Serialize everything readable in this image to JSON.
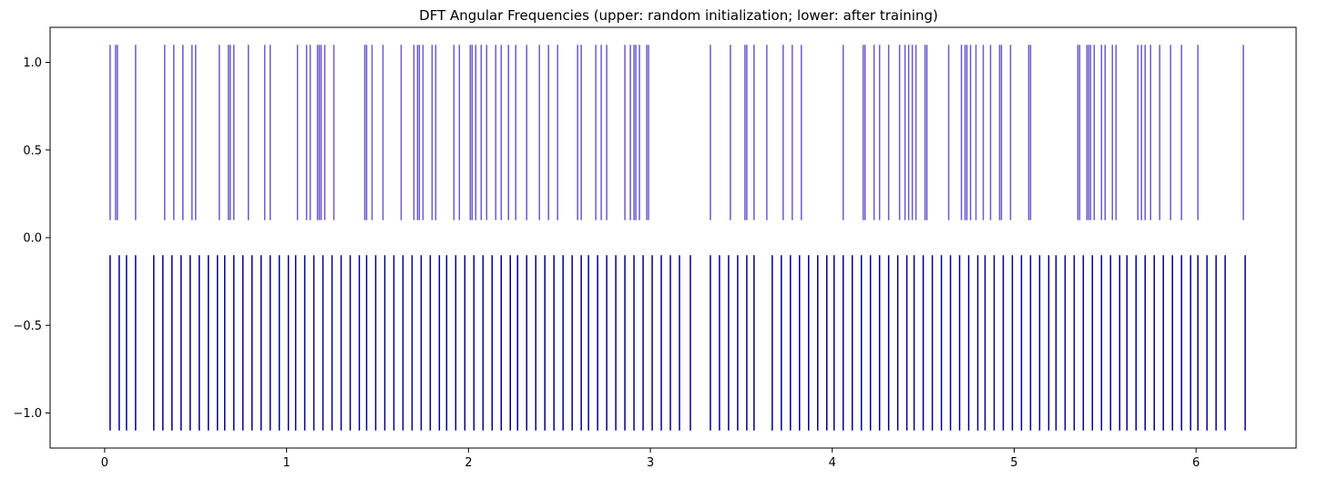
{
  "chart_data": {
    "type": "eventplot",
    "title": "DFT Angular Frequencies (upper: random initialization; lower: after training)",
    "xlabel": "",
    "ylabel": "",
    "xlim": [
      -0.3,
      6.55
    ],
    "ylim": [
      -1.2,
      1.2
    ],
    "grid": false,
    "xticks": [
      0,
      1,
      2,
      3,
      4,
      5,
      6
    ],
    "xtick_labels": [
      "0",
      "1",
      "2",
      "3",
      "4",
      "5",
      "6"
    ],
    "yticks": [
      1.0,
      0.5,
      0.0,
      -0.5,
      -1.0
    ],
    "ytick_labels": [
      "1.0",
      "0.5",
      "0.0",
      "−0.5",
      "−1.0"
    ],
    "series": [
      {
        "color": "#6a5acd",
        "y_range": [
          0.1,
          1.1
        ],
        "positions": [
          0.03,
          0.06,
          0.07,
          0.17,
          0.33,
          0.38,
          0.43,
          0.48,
          0.5,
          0.63,
          0.68,
          0.69,
          0.71,
          0.79,
          0.88,
          0.91,
          1.06,
          1.11,
          1.13,
          1.17,
          1.18,
          1.19,
          1.21,
          1.26,
          1.43,
          1.44,
          1.47,
          1.53,
          1.63,
          1.7,
          1.72,
          1.73,
          1.75,
          1.8,
          1.82,
          1.92,
          1.95,
          2.01,
          2.02,
          2.04,
          2.07,
          2.1,
          2.15,
          2.18,
          2.22,
          2.26,
          2.32,
          2.39,
          2.44,
          2.49,
          2.6,
          2.62,
          2.7,
          2.73,
          2.76,
          2.86,
          2.89,
          2.91,
          2.92,
          2.94,
          2.98,
          2.99,
          3.33,
          3.44,
          3.52,
          3.53,
          3.57,
          3.64,
          3.73,
          3.78,
          3.83,
          4.06,
          4.17,
          4.18,
          4.23,
          4.26,
          4.31,
          4.37,
          4.4,
          4.42,
          4.44,
          4.46,
          4.51,
          4.52,
          4.64,
          4.71,
          4.73,
          4.74,
          4.76,
          4.79,
          4.83,
          4.87,
          4.92,
          4.93,
          4.98,
          5.08,
          5.09,
          5.35,
          5.36,
          5.4,
          5.41,
          5.42,
          5.44,
          5.48,
          5.5,
          5.54,
          5.56,
          5.68,
          5.7,
          5.72,
          5.75,
          5.8,
          5.86,
          5.92,
          6.01,
          6.26
        ]
      },
      {
        "color": "#00008b",
        "y_range": [
          -1.1,
          -0.1
        ],
        "positions": [
          0.03,
          0.08,
          0.12,
          0.17,
          0.27,
          0.32,
          0.37,
          0.42,
          0.47,
          0.52,
          0.57,
          0.62,
          0.66,
          0.71,
          0.76,
          0.81,
          0.86,
          0.91,
          0.96,
          1.01,
          1.05,
          1.1,
          1.15,
          1.2,
          1.25,
          1.3,
          1.35,
          1.4,
          1.44,
          1.49,
          1.54,
          1.59,
          1.64,
          1.69,
          1.74,
          1.79,
          1.84,
          1.88,
          1.93,
          1.98,
          2.03,
          2.08,
          2.13,
          2.18,
          2.23,
          2.27,
          2.32,
          2.37,
          2.42,
          2.47,
          2.52,
          2.57,
          2.62,
          2.66,
          2.71,
          2.76,
          2.81,
          2.86,
          2.91,
          2.96,
          3.01,
          3.06,
          3.11,
          3.16,
          3.22,
          3.33,
          3.38,
          3.43,
          3.48,
          3.53,
          3.57,
          3.67,
          3.72,
          3.77,
          3.82,
          3.87,
          3.92,
          3.97,
          4.01,
          4.06,
          4.11,
          4.16,
          4.21,
          4.26,
          4.31,
          4.36,
          4.41,
          4.45,
          4.5,
          4.55,
          4.6,
          4.65,
          4.7,
          4.75,
          4.8,
          4.84,
          4.89,
          4.94,
          4.99,
          5.04,
          5.09,
          5.14,
          5.19,
          5.23,
          5.28,
          5.33,
          5.38,
          5.43,
          5.48,
          5.53,
          5.58,
          5.62,
          5.67,
          5.72,
          5.77,
          5.82,
          5.87,
          5.92,
          5.97,
          6.01,
          6.06,
          6.11,
          6.16,
          6.27
        ]
      }
    ]
  }
}
